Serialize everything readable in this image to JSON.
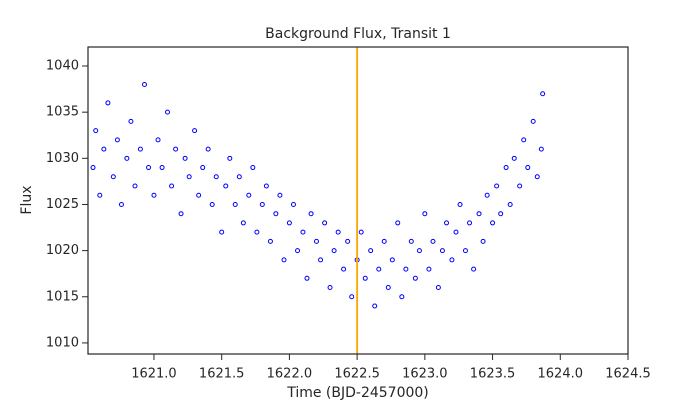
{
  "chart_data": {
    "type": "scatter",
    "title": "Background Flux, Transit 1",
    "x_label": "Time (BJD-2457000)",
    "y_label": "Flux",
    "color": "#0000ff",
    "vline": 1622.5,
    "vline_color": "#ffa500",
    "xlim": [
      1620.513,
      1624.5
    ],
    "xticks": [
      {
        "value": 1621,
        "label": "1621.0"
      },
      {
        "value": 1621.5,
        "label": "1621.5"
      },
      {
        "value": 1622,
        "label": "1622.0"
      },
      {
        "value": 1622.5,
        "label": "1622.5"
      },
      {
        "value": 1623,
        "label": "1623.0"
      },
      {
        "value": 1623.5,
        "label": "1623.5"
      },
      {
        "value": 1624,
        "label": "1624.0"
      },
      {
        "value": 1624.5,
        "label": "1624.5"
      }
    ],
    "ylim": [
      1008.8,
      1042.06
    ],
    "yticks": [
      1010,
      1015,
      1020,
      1025,
      1030,
      1035,
      1040
    ],
    "x": [
      1620.55,
      1620.57,
      1620.6,
      1620.63,
      1620.66,
      1620.7,
      1620.73,
      1620.76,
      1620.8,
      1620.83,
      1620.86,
      1620.9,
      1620.93,
      1620.96,
      1621,
      1621.03,
      1621.06,
      1621.1,
      1621.13,
      1621.16,
      1621.2,
      1621.23,
      1621.26,
      1621.3,
      1621.33,
      1621.36,
      1621.4,
      1621.43,
      1621.46,
      1621.5,
      1621.53,
      1621.56,
      1621.6,
      1621.63,
      1621.66,
      1621.7,
      1621.73,
      1621.76,
      1621.8,
      1621.83,
      1621.86,
      1621.9,
      1621.93,
      1621.96,
      1622,
      1622.03,
      1622.06,
      1622.1,
      1622.13,
      1622.16,
      1622.2,
      1622.23,
      1622.26,
      1622.3,
      1622.33,
      1622.36,
      1622.4,
      1622.43,
      1622.46,
      1622.5,
      1622.53,
      1622.56,
      1622.6,
      1622.63,
      1622.66,
      1622.7,
      1622.73,
      1622.76,
      1622.8,
      1622.83,
      1622.86,
      1622.9,
      1622.93,
      1622.96,
      1623,
      1623.03,
      1623.06,
      1623.1,
      1623.13,
      1623.16,
      1623.2,
      1623.23,
      1623.26,
      1623.3,
      1623.33,
      1623.36,
      1623.4,
      1623.43,
      1623.46,
      1623.5,
      1623.53,
      1623.56,
      1623.6,
      1623.63,
      1623.66,
      1623.7,
      1623.73,
      1623.76,
      1623.8,
      1623.83,
      1623.86,
      1623.87
    ],
    "values": [
      1029,
      1033,
      1026,
      1031,
      1036,
      1028,
      1032,
      1025,
      1030,
      1034,
      1027,
      1031,
      1038,
      1029,
      1026,
      1032,
      1029,
      1035,
      1027,
      1031,
      1024,
      1030,
      1028,
      1033,
      1026,
      1029,
      1031,
      1025,
      1028,
      1022,
      1027,
      1030,
      1025,
      1028,
      1023,
      1026,
      1029,
      1022,
      1025,
      1027,
      1021,
      1024,
      1026,
      1019,
      1023,
      1025,
      1020,
      1022,
      1017,
      1024,
      1021,
      1019,
      1023,
      1016,
      1020,
      1022,
      1018,
      1021,
      1015,
      1019,
      1022,
      1017,
      1020,
      1014,
      1018,
      1021,
      1016,
      1019,
      1023,
      1015,
      1018,
      1021,
      1017,
      1020,
      1024,
      1018,
      1021,
      1016,
      1020,
      1023,
      1019,
      1022,
      1025,
      1020,
      1023,
      1018,
      1024,
      1021,
      1026,
      1023,
      1027,
      1024,
      1029,
      1025,
      1030,
      1027,
      1032,
      1029,
      1034,
      1028,
      1031,
      1037
    ]
  }
}
